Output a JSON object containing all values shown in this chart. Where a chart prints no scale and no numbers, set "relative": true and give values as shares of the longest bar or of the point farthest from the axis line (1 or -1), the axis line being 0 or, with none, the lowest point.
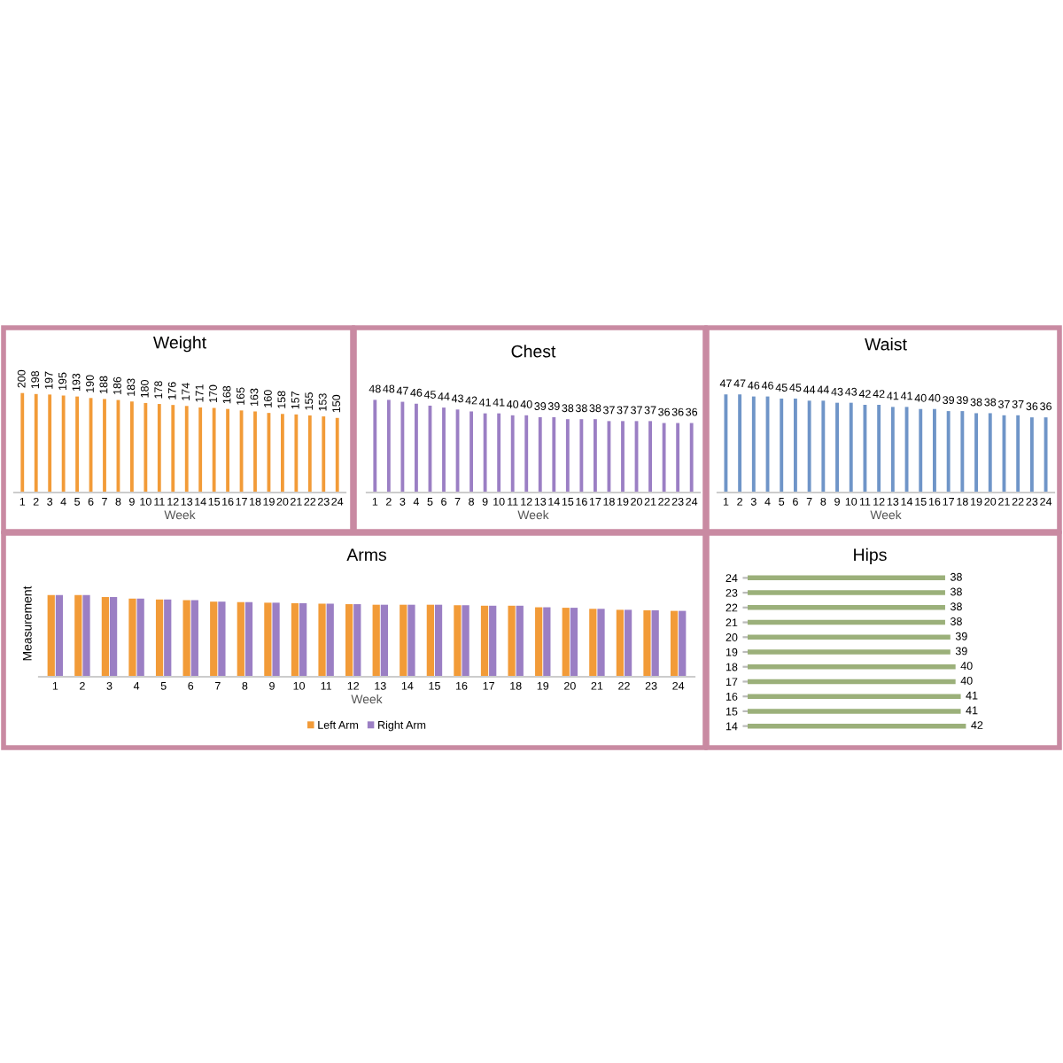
{
  "chart_data": [
    {
      "type": "bar",
      "title": "Weight",
      "xlabel": "Week",
      "categories": [
        "1",
        "2",
        "3",
        "4",
        "5",
        "6",
        "7",
        "8",
        "9",
        "10",
        "11",
        "12",
        "13",
        "14",
        "15",
        "16",
        "17",
        "18",
        "19",
        "20",
        "21",
        "22",
        "23",
        "24"
      ],
      "values": [
        200,
        198,
        197,
        195,
        193,
        190,
        188,
        186,
        183,
        180,
        178,
        176,
        174,
        171,
        170,
        168,
        165,
        163,
        160,
        158,
        157,
        155,
        153,
        150
      ],
      "color": "#f29b38",
      "data_labels": true
    },
    {
      "type": "bar",
      "title": "Chest",
      "xlabel": "Week",
      "categories": [
        "1",
        "2",
        "3",
        "4",
        "5",
        "6",
        "7",
        "8",
        "9",
        "10",
        "11",
        "12",
        "13",
        "14",
        "15",
        "16",
        "17",
        "18",
        "19",
        "20",
        "21",
        "22",
        "23",
        "24"
      ],
      "values": [
        48,
        48,
        47,
        46,
        45,
        44,
        43,
        42,
        41,
        41,
        40,
        40,
        39,
        39,
        38,
        38,
        38,
        37,
        37,
        37,
        37,
        36,
        36,
        36
      ],
      "color": "#9b7fc4",
      "data_labels": true
    },
    {
      "type": "bar",
      "title": "Waist",
      "xlabel": "Week",
      "categories": [
        "1",
        "2",
        "3",
        "4",
        "5",
        "6",
        "7",
        "8",
        "9",
        "10",
        "11",
        "12",
        "13",
        "14",
        "15",
        "16",
        "17",
        "18",
        "19",
        "20",
        "21",
        "22",
        "23",
        "24"
      ],
      "values": [
        47,
        47,
        46,
        46,
        45,
        45,
        44,
        44,
        43,
        43,
        42,
        42,
        41,
        41,
        40,
        40,
        39,
        39,
        38,
        38,
        37,
        37,
        36,
        36
      ],
      "color": "#6f95c8",
      "data_labels": true
    },
    {
      "type": "bar",
      "title": "Arms",
      "xlabel": "Week",
      "ylabel": "Measurement",
      "relative": true,
      "legend": "bottom",
      "categories": [
        "1",
        "2",
        "3",
        "4",
        "5",
        "6",
        "7",
        "8",
        "9",
        "10",
        "11",
        "12",
        "13",
        "14",
        "15",
        "16",
        "17",
        "18",
        "19",
        "20",
        "21",
        "22",
        "23",
        "24"
      ],
      "series": [
        {
          "name": "Left Arm",
          "color": "#f29b38",
          "values": [
            1,
            1,
            0.975,
            0.956,
            0.944,
            0.938,
            0.919,
            0.913,
            0.906,
            0.9,
            0.894,
            0.888,
            0.881,
            0.881,
            0.881,
            0.875,
            0.869,
            0.869,
            0.85,
            0.844,
            0.831,
            0.819,
            0.813,
            0.806
          ]
        },
        {
          "name": "Right Arm",
          "color": "#9b7fc4",
          "values": [
            1,
            1,
            0.975,
            0.956,
            0.944,
            0.938,
            0.919,
            0.913,
            0.906,
            0.9,
            0.894,
            0.888,
            0.881,
            0.881,
            0.881,
            0.875,
            0.869,
            0.869,
            0.85,
            0.844,
            0.831,
            0.819,
            0.813,
            0.806
          ]
        }
      ]
    },
    {
      "type": "bar",
      "title": "Hips",
      "orientation": "horizontal",
      "categories": [
        "24",
        "23",
        "22",
        "21",
        "20",
        "19",
        "18",
        "17",
        "16",
        "15",
        "14"
      ],
      "values": [
        38,
        38,
        38,
        38,
        39,
        39,
        40,
        40,
        41,
        41,
        42
      ],
      "color": "#9bb07a",
      "data_labels": true
    }
  ]
}
